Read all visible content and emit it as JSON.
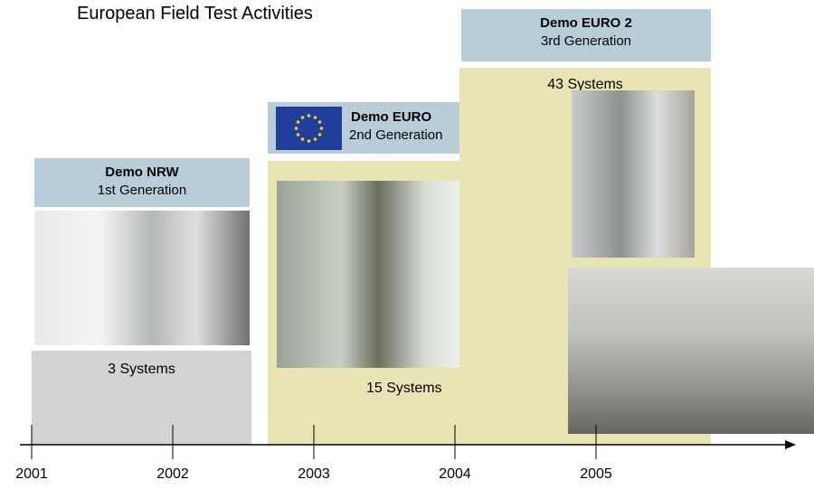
{
  "title": "European Field Test Activities",
  "phases": [
    {
      "name": "Demo NRW",
      "generation": "1st Generation",
      "systems": "3 Systems"
    },
    {
      "name": "Demo EURO",
      "generation": "2nd Generation",
      "systems": "15 Systems"
    },
    {
      "name": "Demo EURO 2",
      "generation": "3rd Generation",
      "systems": "43 Systems"
    }
  ],
  "timeline": [
    "2001",
    "2002",
    "2003",
    "2004",
    "2005"
  ]
}
